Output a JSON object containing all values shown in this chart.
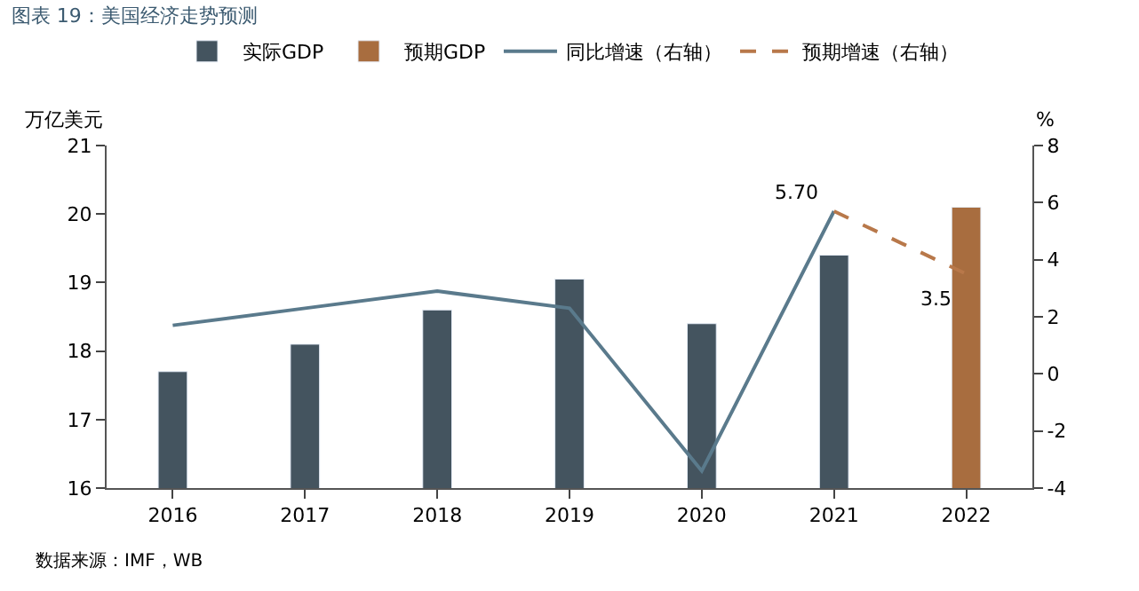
{
  "chart_data": {
    "type": "bar",
    "title": "图表 19：美国经济走势预测",
    "categories": [
      "2016",
      "2017",
      "2018",
      "2019",
      "2020",
      "2021",
      "2022"
    ],
    "series": [
      {
        "name": "实际GDP",
        "color": "#44545f",
        "values": [
          17.7,
          18.1,
          18.6,
          19.05,
          18.4,
          19.4,
          null
        ]
      },
      {
        "name": "预期GDP",
        "color": "#a86d3f",
        "values": [
          null,
          null,
          null,
          null,
          null,
          null,
          20.1
        ]
      },
      {
        "name": "同比增速（右轴）",
        "type": "line",
        "axis": "y2",
        "color": "#5a7a8c",
        "line_style": "solid",
        "values": [
          1.7,
          2.3,
          2.9,
          2.3,
          -3.4,
          5.7,
          null
        ],
        "value_labels": [
          null,
          null,
          null,
          null,
          null,
          "5.70",
          null
        ]
      },
      {
        "name": "预期增速（右轴）",
        "type": "line",
        "axis": "y2",
        "color": "#b8784a",
        "line_style": "dashed",
        "values": [
          null,
          null,
          null,
          null,
          null,
          5.7,
          3.5
        ],
        "value_labels": [
          null,
          null,
          null,
          null,
          null,
          null,
          "3.5"
        ]
      }
    ],
    "ylabel": "万亿美元",
    "y2label": "%",
    "ylim": [
      16,
      21
    ],
    "yticks": [
      16,
      17,
      18,
      19,
      20,
      21
    ],
    "y2lim": [
      -4,
      8
    ],
    "y2ticks": [
      -4,
      -2,
      0,
      2,
      4,
      6,
      8
    ],
    "legend": "top",
    "marker": "none",
    "annotations": [
      "数据来源：IMF，WB"
    ]
  }
}
